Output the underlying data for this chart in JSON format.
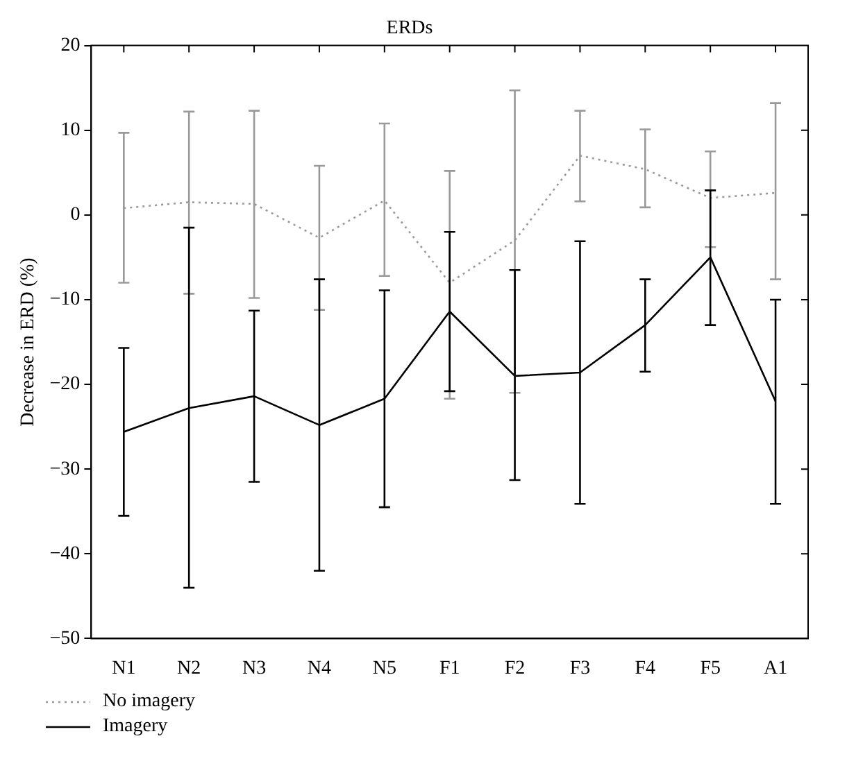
{
  "chart_data": {
    "type": "line",
    "title": "ERDs",
    "ylabel": "Decrease in ERD (%)",
    "categories": [
      "N1",
      "N2",
      "N3",
      "N4",
      "N5",
      "F1",
      "F2",
      "F3",
      "F4",
      "F5",
      "A1"
    ],
    "series": [
      {
        "name": "No imagery",
        "color": "#999999",
        "line_style": "dotted",
        "values": [
          0.8,
          1.5,
          1.3,
          -2.7,
          1.7,
          -8,
          -3,
          7,
          5.4,
          2,
          2.6
        ],
        "errors": [
          [
            -8,
            9.7
          ],
          [
            -9.3,
            12.2
          ],
          [
            -9.8,
            12.3
          ],
          [
            -11.2,
            5.8
          ],
          [
            -7.2,
            10.8
          ],
          [
            -21.7,
            5.2
          ],
          [
            -21,
            14.7
          ],
          [
            1.6,
            12.3
          ],
          [
            0.9,
            10.1
          ],
          [
            -3.8,
            7.5
          ],
          [
            -7.6,
            13.2
          ]
        ]
      },
      {
        "name": "Imagery",
        "color": "#000000",
        "line_style": "solid",
        "values": [
          -25.6,
          -22.8,
          -21.4,
          -24.8,
          -21.7,
          -11.4,
          -19,
          -18.6,
          -13,
          -5,
          -22
        ],
        "errors": [
          [
            -35.5,
            -15.7
          ],
          [
            -44,
            -1.5
          ],
          [
            -31.5,
            -11.3
          ],
          [
            -42,
            -7.6
          ],
          [
            -34.5,
            -8.9
          ],
          [
            -20.8,
            -2
          ],
          [
            -31.3,
            -6.5
          ],
          [
            -34.1,
            -3.1
          ],
          [
            -18.5,
            -7.6
          ],
          [
            -13,
            2.9
          ],
          [
            -34.1,
            -10
          ]
        ]
      }
    ],
    "ylim": [
      -50,
      20
    ],
    "yticks": [
      20,
      {
        "value": 10,
        "label": "10"
      },
      0,
      {
        "value": -10,
        "label": "−10"
      },
      {
        "value": -20,
        "label": "−20"
      },
      {
        "value": -30,
        "label": "−30"
      },
      {
        "value": -40,
        "label": "−40"
      },
      {
        "value": -50,
        "label": "−50"
      }
    ],
    "grid": false,
    "legend": "bottom left",
    "marker": "none"
  }
}
